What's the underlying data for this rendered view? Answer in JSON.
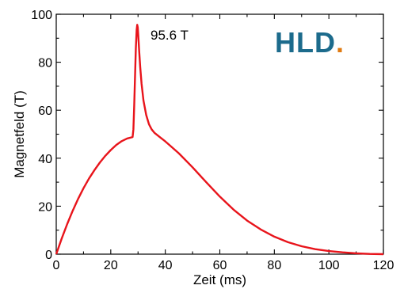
{
  "chart_data": {
    "type": "line",
    "xlabel": "Zeit (ms)",
    "ylabel": "Magnetfeld (T)",
    "xlim": [
      0,
      120
    ],
    "ylim": [
      0,
      100
    ],
    "xticks": [
      0,
      20,
      40,
      60,
      80,
      100,
      120
    ],
    "yticks": [
      0,
      20,
      40,
      60,
      80,
      100
    ],
    "grid": false,
    "annotation": "95.6 T",
    "peak": {
      "x": 29.7,
      "y": 95.6
    },
    "series": [
      {
        "color": "#e8141b",
        "x": [
          0,
          2,
          4,
          6,
          8,
          10,
          12,
          14,
          16,
          18,
          20,
          22,
          24,
          26,
          28,
          28.3,
          28.6,
          28.9,
          29.2,
          29.5,
          29.7,
          29.9,
          30.1,
          30.4,
          30.8,
          31.3,
          32,
          33,
          34,
          35,
          36,
          38,
          40,
          42,
          45,
          50,
          55,
          60,
          65,
          70,
          75,
          80,
          85,
          90,
          95,
          100,
          105,
          110,
          115,
          120
        ],
        "y": [
          0,
          6.5,
          12.5,
          18,
          23,
          27.5,
          31.5,
          35,
          38.2,
          41,
          43.4,
          45.5,
          47.1,
          48.2,
          48.8,
          52,
          62,
          74,
          86,
          93.5,
          95.6,
          94.5,
          91,
          85,
          78,
          71,
          64,
          58,
          54.2,
          52,
          50.6,
          48.8,
          47,
          45,
          42,
          36.2,
          30,
          24,
          18.6,
          14,
          10.3,
          7.3,
          5,
          3.3,
          2.1,
          1.3,
          0.75,
          0.35,
          0.1,
          0
        ]
      }
    ]
  },
  "logo": {
    "text": "HLD",
    "dot": ".",
    "text_color": "#1c6b8c",
    "dot_color": "#e07a10"
  }
}
